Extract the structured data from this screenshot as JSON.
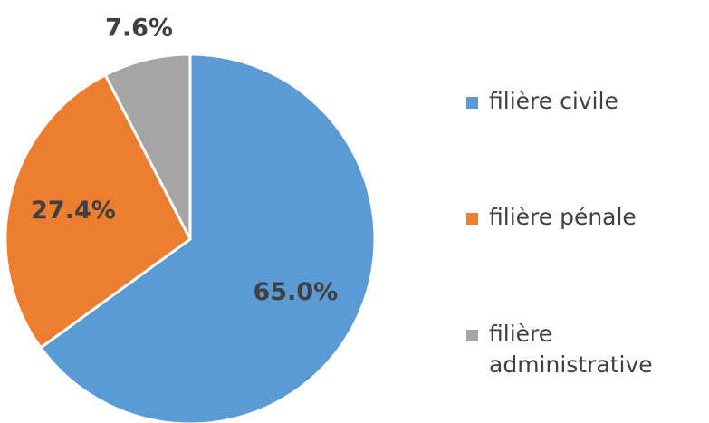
{
  "chart_data": {
    "type": "pie",
    "categories": [
      "filière civile",
      "filière pénale",
      "filière administrative"
    ],
    "values": [
      65.0,
      27.4,
      7.6
    ],
    "value_labels": [
      "65.0%",
      "27.4%",
      "7.6%"
    ],
    "colors": [
      "#5b9bd5",
      "#ed7d31",
      "#a5a5a5"
    ],
    "legend": "right"
  }
}
